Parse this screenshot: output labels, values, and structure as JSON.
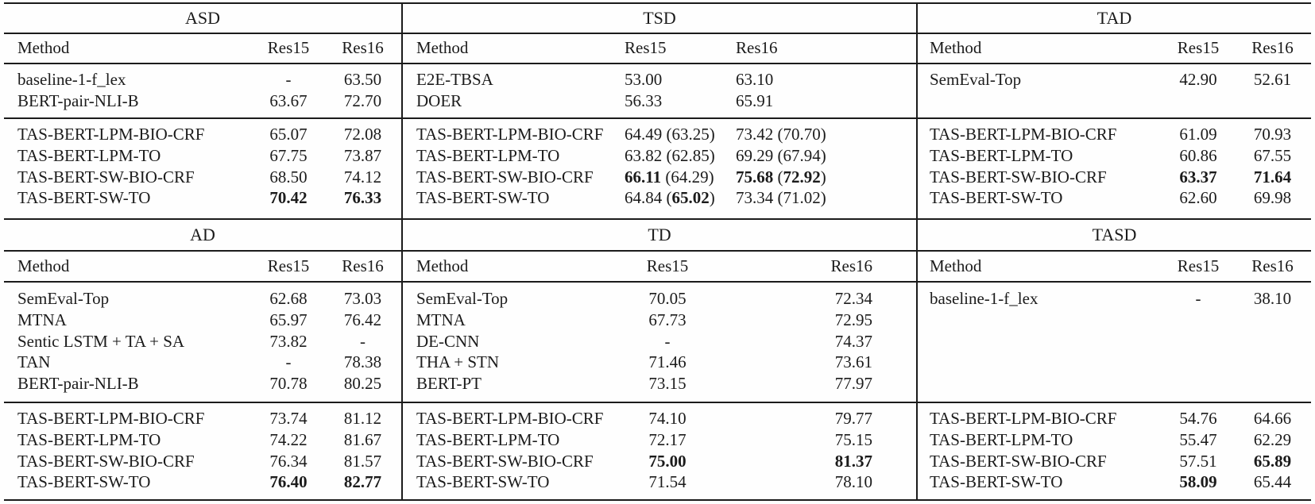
{
  "colors": {
    "text": "#1b1b1b",
    "rule": "#1b1b1b",
    "background": "#fefefe"
  },
  "panels": [
    {
      "title": "ASD",
      "columns": [
        "Method",
        "Res15",
        "Res16"
      ],
      "baseline_rows": [
        {
          "method": "baseline-1-f_lex",
          "res15": "-",
          "res16": "63.50"
        },
        {
          "method": "BERT-pair-NLI-B",
          "res15": "63.67",
          "res16": "72.70"
        }
      ],
      "tas_rows": [
        {
          "method": "TAS-BERT-LPM-BIO-CRF",
          "res15": "65.07",
          "res16": "72.08"
        },
        {
          "method": "TAS-BERT-LPM-TO",
          "res15": "67.75",
          "res16": "73.87"
        },
        {
          "method": "TAS-BERT-SW-BIO-CRF",
          "res15": "68.50",
          "res16": "74.12"
        },
        {
          "method": "TAS-BERT-SW-TO",
          "res15": "**70.42**",
          "res16": "**76.33**"
        }
      ]
    },
    {
      "title": "TSD",
      "columns": [
        "Method",
        "Res15",
        "Res16"
      ],
      "baseline_rows": [
        {
          "method": "E2E-TBSA",
          "res15": "53.00",
          "res16": "63.10"
        },
        {
          "method": "DOER",
          "res15": "56.33",
          "res16": "65.91"
        }
      ],
      "tas_rows": [
        {
          "method": "TAS-BERT-LPM-BIO-CRF",
          "res15": "64.49 (63.25)",
          "res16": "73.42 (70.70)"
        },
        {
          "method": "TAS-BERT-LPM-TO",
          "res15": "63.82 (62.85)",
          "res16": "69.29 (67.94)"
        },
        {
          "method": "TAS-BERT-SW-BIO-CRF",
          "res15": "**66.11** (64.29)",
          "res16": "**75.68** (**72.92**)"
        },
        {
          "method": "TAS-BERT-SW-TO",
          "res15": "64.84 (**65.02**)",
          "res16": "73.34 (71.02)"
        }
      ]
    },
    {
      "title": "TAD",
      "columns": [
        "Method",
        "Res15",
        "Res16"
      ],
      "baseline_rows": [
        {
          "method": "SemEval-Top",
          "res15": "42.90",
          "res16": "52.61"
        }
      ],
      "tas_rows": [
        {
          "method": "TAS-BERT-LPM-BIO-CRF",
          "res15": "61.09",
          "res16": "70.93"
        },
        {
          "method": "TAS-BERT-LPM-TO",
          "res15": "60.86",
          "res16": "67.55"
        },
        {
          "method": "TAS-BERT-SW-BIO-CRF",
          "res15": "**63.37**",
          "res16": "**71.64**"
        },
        {
          "method": "TAS-BERT-SW-TO",
          "res15": "62.60",
          "res16": "69.98"
        }
      ]
    },
    {
      "title": "AD",
      "columns": [
        "Method",
        "Res15",
        "Res16"
      ],
      "baseline_rows": [
        {
          "method": "SemEval-Top",
          "res15": "62.68",
          "res16": "73.03"
        },
        {
          "method": "MTNA",
          "res15": "65.97",
          "res16": "76.42"
        },
        {
          "method": "Sentic LSTM + TA + SA",
          "res15": "73.82",
          "res16": "-"
        },
        {
          "method": "TAN",
          "res15": "-",
          "res16": "78.38"
        },
        {
          "method": "BERT-pair-NLI-B",
          "res15": "70.78",
          "res16": "80.25"
        }
      ],
      "tas_rows": [
        {
          "method": "TAS-BERT-LPM-BIO-CRF",
          "res15": "73.74",
          "res16": "81.12"
        },
        {
          "method": "TAS-BERT-LPM-TO",
          "res15": "74.22",
          "res16": "81.67"
        },
        {
          "method": "TAS-BERT-SW-BIO-CRF",
          "res15": "76.34",
          "res16": "81.57"
        },
        {
          "method": "TAS-BERT-SW-TO",
          "res15": "**76.40**",
          "res16": "**82.77**"
        }
      ]
    },
    {
      "title": "TD",
      "columns": [
        "Method",
        "Res15",
        "Res16"
      ],
      "baseline_rows": [
        {
          "method": "SemEval-Top",
          "res15": "70.05",
          "res16": "72.34"
        },
        {
          "method": "MTNA",
          "res15": "67.73",
          "res16": "72.95"
        },
        {
          "method": "DE-CNN",
          "res15": "-",
          "res16": "74.37"
        },
        {
          "method": "THA + STN",
          "res15": "71.46",
          "res16": "73.61"
        },
        {
          "method": "BERT-PT",
          "res15": "73.15",
          "res16": "77.97"
        }
      ],
      "tas_rows": [
        {
          "method": "TAS-BERT-LPM-BIO-CRF",
          "res15": "74.10",
          "res16": "79.77"
        },
        {
          "method": "TAS-BERT-LPM-TO",
          "res15": "72.17",
          "res16": "75.15"
        },
        {
          "method": "TAS-BERT-SW-BIO-CRF",
          "res15": "**75.00**",
          "res16": "**81.37**"
        },
        {
          "method": "TAS-BERT-SW-TO",
          "res15": "71.54",
          "res16": "78.10"
        }
      ]
    },
    {
      "title": "TASD",
      "columns": [
        "Method",
        "Res15",
        "Res16"
      ],
      "baseline_rows": [
        {
          "method": "baseline-1-f_lex",
          "res15": "-",
          "res16": "38.10"
        }
      ],
      "tas_rows": [
        {
          "method": "TAS-BERT-LPM-BIO-CRF",
          "res15": "54.76",
          "res16": "64.66"
        },
        {
          "method": "TAS-BERT-LPM-TO",
          "res15": "55.47",
          "res16": "62.29"
        },
        {
          "method": "TAS-BERT-SW-BIO-CRF",
          "res15": "57.51",
          "res16": "**65.89**"
        },
        {
          "method": "TAS-BERT-SW-TO",
          "res15": "**58.09**",
          "res16": "65.44"
        }
      ]
    }
  ]
}
